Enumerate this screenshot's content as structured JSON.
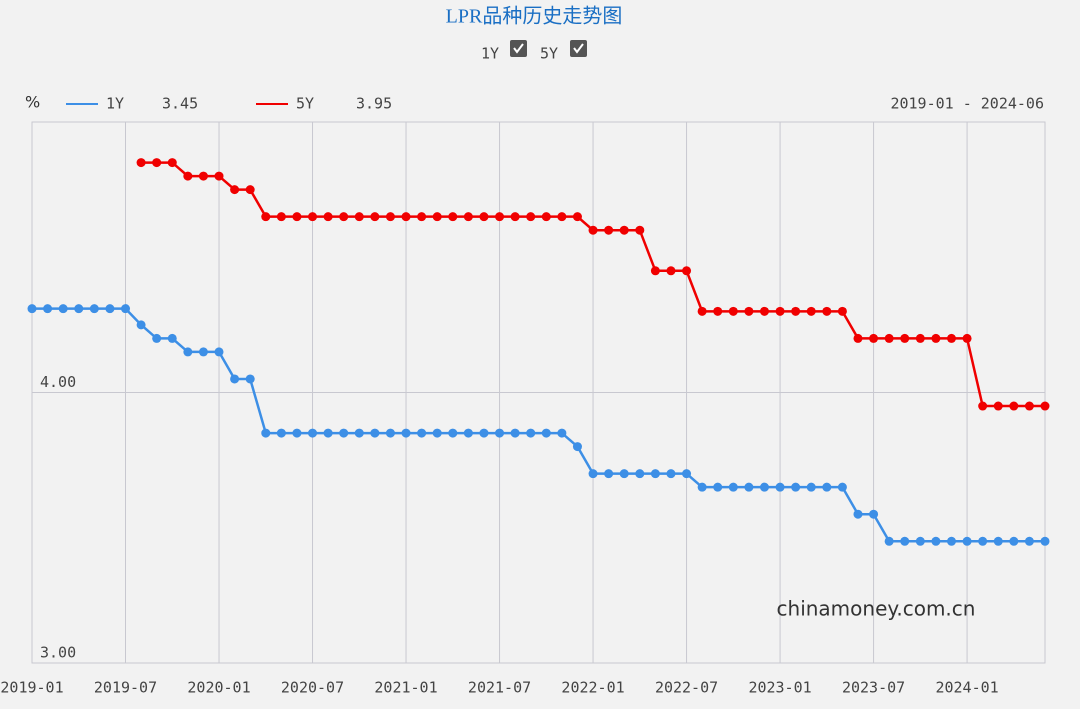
{
  "chart_data": {
    "type": "line",
    "title": "LPR品种历史走势图",
    "y_label": "%",
    "range": "2019-01 - 2024-06",
    "watermark": "chinamoney.com.cn",
    "categories": [
      "2019-01",
      null,
      null,
      null,
      null,
      null,
      "2019-07",
      null,
      null,
      null,
      null,
      null,
      "2020-01",
      null,
      null,
      null,
      null,
      null,
      "2020-07",
      null,
      null,
      null,
      null,
      null,
      "2021-01",
      null,
      null,
      null,
      null,
      null,
      "2021-07",
      null,
      null,
      null,
      null,
      null,
      "2022-01",
      null,
      null,
      null,
      null,
      null,
      "2022-07",
      null,
      null,
      null,
      null,
      null,
      "2023-01",
      null,
      null,
      null,
      null,
      null,
      "2023-07",
      null,
      null,
      null,
      null,
      null,
      "2024-01",
      null,
      null,
      null,
      null,
      null
    ],
    "series": [
      {
        "name": "1Y",
        "color": "#3d8fe6",
        "values": [
          4.31,
          4.31,
          4.31,
          4.31,
          4.31,
          4.31,
          4.31,
          4.25,
          4.2,
          4.2,
          4.15,
          4.15,
          4.15,
          4.05,
          4.05,
          3.85,
          3.85,
          3.85,
          3.85,
          3.85,
          3.85,
          3.85,
          3.85,
          3.85,
          3.85,
          3.85,
          3.85,
          3.85,
          3.85,
          3.85,
          3.85,
          3.85,
          3.85,
          3.85,
          3.85,
          3.8,
          3.7,
          3.7,
          3.7,
          3.7,
          3.7,
          3.7,
          3.7,
          3.65,
          3.65,
          3.65,
          3.65,
          3.65,
          3.65,
          3.65,
          3.65,
          3.65,
          3.65,
          3.55,
          3.55,
          3.45,
          3.45,
          3.45,
          3.45,
          3.45,
          3.45,
          3.45,
          3.45,
          3.45,
          3.45,
          3.45
        ]
      },
      {
        "name": "5Y",
        "color": "#f00000",
        "values": [
          null,
          null,
          null,
          null,
          null,
          null,
          null,
          4.85,
          4.85,
          4.85,
          4.8,
          4.8,
          4.8,
          4.75,
          4.75,
          4.65,
          4.65,
          4.65,
          4.65,
          4.65,
          4.65,
          4.65,
          4.65,
          4.65,
          4.65,
          4.65,
          4.65,
          4.65,
          4.65,
          4.65,
          4.65,
          4.65,
          4.65,
          4.65,
          4.65,
          4.65,
          4.6,
          4.6,
          4.6,
          4.6,
          4.45,
          4.45,
          4.45,
          4.3,
          4.3,
          4.3,
          4.3,
          4.3,
          4.3,
          4.3,
          4.3,
          4.3,
          4.3,
          4.2,
          4.2,
          4.2,
          4.2,
          4.2,
          4.2,
          4.2,
          4.2,
          3.95,
          3.95,
          3.95,
          3.95,
          3.95
        ]
      }
    ],
    "ylim": [
      3,
      5
    ],
    "yticks": [
      {
        "value": 3,
        "label": "3.00"
      },
      {
        "value": 4,
        "label": "4.00"
      }
    ],
    "grid": true
  }
}
